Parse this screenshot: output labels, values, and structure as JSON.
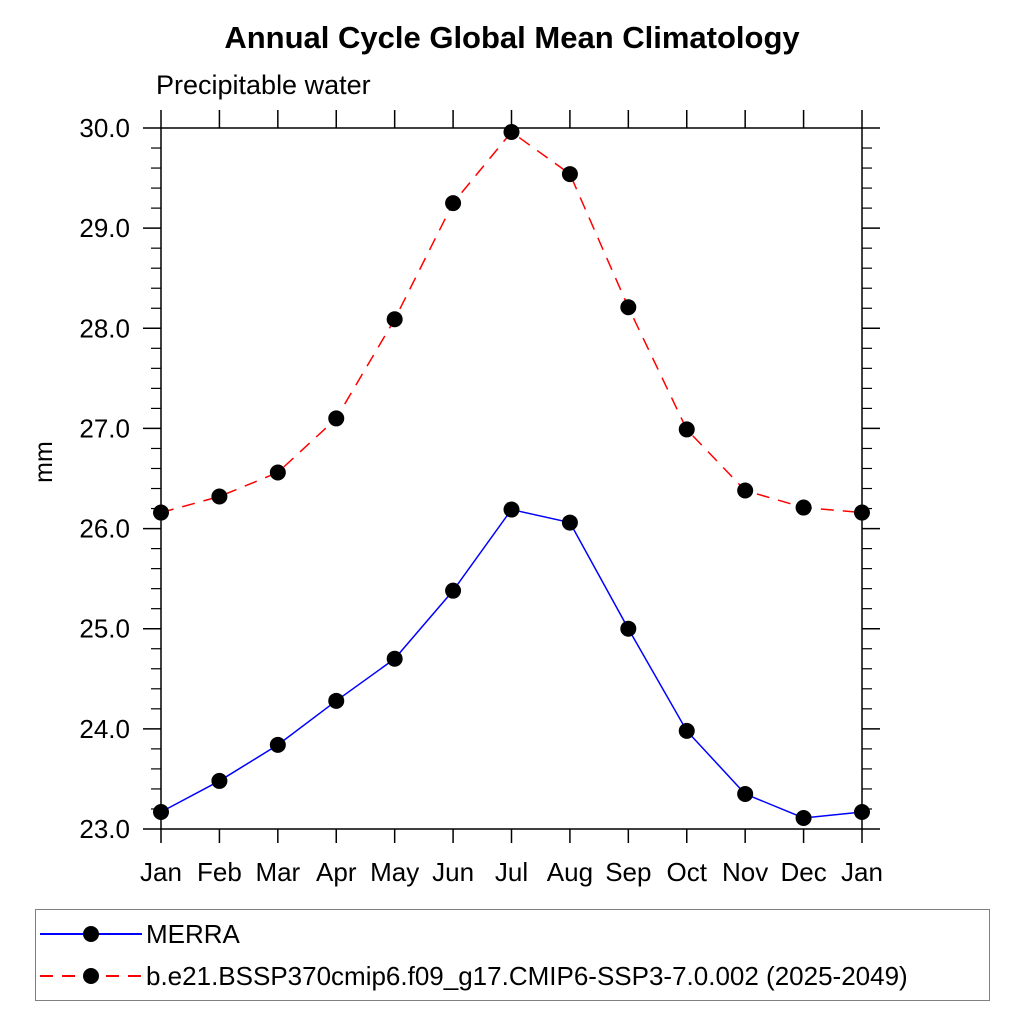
{
  "chart_data": {
    "type": "line",
    "title": "Annual Cycle Global Mean Climatology",
    "subtitle": "Precipitable water",
    "ylabel": "mm",
    "xlabel": "",
    "x_tick_labels": [
      "Jan",
      "Feb",
      "Mar",
      "Apr",
      "May",
      "Jun",
      "Jul",
      "Aug",
      "Sep",
      "Oct",
      "Nov",
      "Dec",
      "Jan"
    ],
    "y_tick_labels": [
      "23.0",
      "24.0",
      "25.0",
      "26.0",
      "27.0",
      "28.0",
      "29.0",
      "30.0"
    ],
    "ylim": [
      23.0,
      30.0
    ],
    "y_major_step": 1.0,
    "y_minor_step": 0.2,
    "grid": false,
    "legend_position": "bottom-left-box",
    "axis_color": "#000000",
    "legend_border_color": "#808080",
    "marker": "filled-circle",
    "marker_color": "#000000",
    "series": [
      {
        "name": "MERRA",
        "color": "#0000ff",
        "style": "solid",
        "values": [
          23.17,
          23.48,
          23.84,
          24.28,
          24.7,
          25.38,
          26.19,
          26.06,
          25.0,
          23.98,
          23.35,
          23.11,
          23.17
        ]
      },
      {
        "name": "b.e21.BSSP370cmip6.f09_g17.CMIP6-SSP3-7.0.002 (2025-2049)",
        "color": "#ff0000",
        "style": "dashed",
        "values": [
          26.16,
          26.32,
          26.56,
          27.1,
          28.09,
          29.25,
          29.96,
          29.54,
          28.21,
          26.99,
          26.38,
          26.21,
          26.16
        ]
      }
    ]
  }
}
